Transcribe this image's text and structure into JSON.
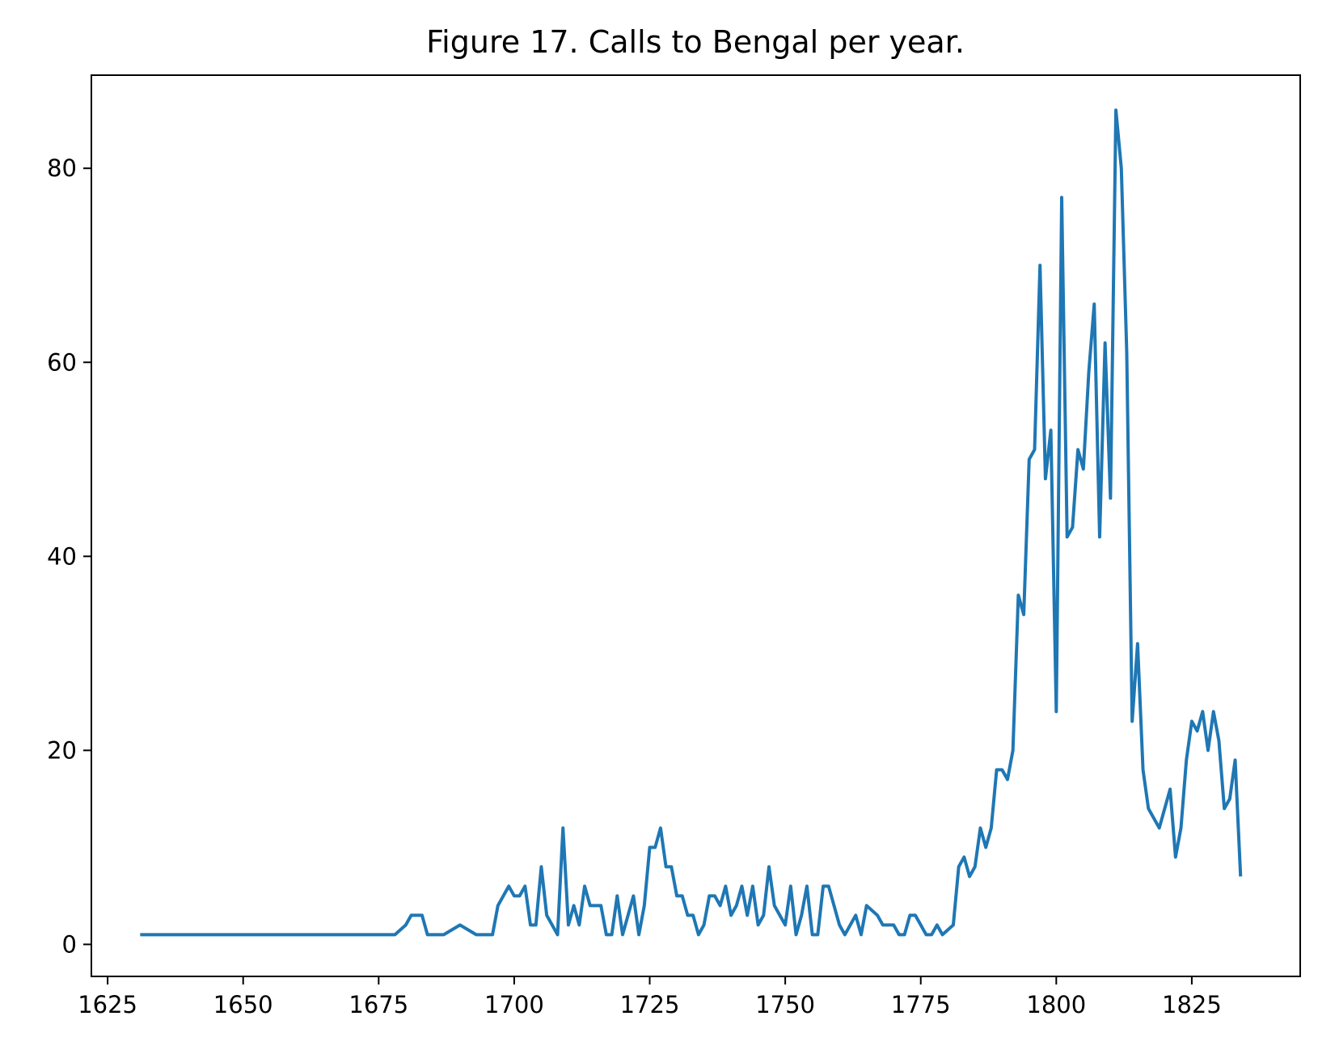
{
  "chart_data": {
    "type": "line",
    "title": "Figure 17. Calls to Bengal per year.",
    "xlabel": "",
    "ylabel": "",
    "xlim": [
      1622,
      1845
    ],
    "ylim": [
      -3.3,
      89.6
    ],
    "xticks": [
      1625,
      1650,
      1675,
      1700,
      1725,
      1750,
      1775,
      1800,
      1825
    ],
    "yticks": [
      0,
      20,
      40,
      60,
      80
    ],
    "grid": false,
    "legend": "none",
    "line_color": "#1f77b4",
    "series": [
      {
        "points": [
          [
            1631,
            1
          ],
          [
            1678,
            1
          ],
          [
            1680,
            2
          ],
          [
            1681,
            3
          ],
          [
            1683,
            3
          ],
          [
            1684,
            1
          ],
          [
            1687,
            1
          ],
          [
            1690,
            2
          ],
          [
            1693,
            1
          ],
          [
            1696,
            1
          ],
          [
            1697,
            4
          ],
          [
            1699,
            6
          ],
          [
            1700,
            5
          ],
          [
            1701,
            5
          ],
          [
            1702,
            6
          ],
          [
            1703,
            2
          ],
          [
            1704,
            2
          ],
          [
            1705,
            8
          ],
          [
            1706,
            3
          ],
          [
            1708,
            1
          ],
          [
            1709,
            12
          ],
          [
            1710,
            2
          ],
          [
            1711,
            4
          ],
          [
            1712,
            2
          ],
          [
            1713,
            6
          ],
          [
            1714,
            4
          ],
          [
            1716,
            4
          ],
          [
            1717,
            1
          ],
          [
            1718,
            1
          ],
          [
            1719,
            5
          ],
          [
            1720,
            1
          ],
          [
            1722,
            5
          ],
          [
            1723,
            1
          ],
          [
            1724,
            4
          ],
          [
            1725,
            10
          ],
          [
            1726,
            10
          ],
          [
            1727,
            12
          ],
          [
            1728,
            8
          ],
          [
            1729,
            8
          ],
          [
            1730,
            5
          ],
          [
            1731,
            5
          ],
          [
            1732,
            3
          ],
          [
            1733,
            3
          ],
          [
            1734,
            1
          ],
          [
            1735,
            2
          ],
          [
            1736,
            5
          ],
          [
            1737,
            5
          ],
          [
            1738,
            4
          ],
          [
            1739,
            6
          ],
          [
            1740,
            3
          ],
          [
            1741,
            4
          ],
          [
            1742,
            6
          ],
          [
            1743,
            3
          ],
          [
            1744,
            6
          ],
          [
            1745,
            2
          ],
          [
            1746,
            3
          ],
          [
            1747,
            8
          ],
          [
            1748,
            4
          ],
          [
            1749,
            3
          ],
          [
            1750,
            2
          ],
          [
            1751,
            6
          ],
          [
            1752,
            1
          ],
          [
            1753,
            3
          ],
          [
            1754,
            6
          ],
          [
            1755,
            1
          ],
          [
            1756,
            1
          ],
          [
            1757,
            6
          ],
          [
            1758,
            6
          ],
          [
            1759,
            4
          ],
          [
            1760,
            2
          ],
          [
            1761,
            1
          ],
          [
            1762,
            2
          ],
          [
            1763,
            3
          ],
          [
            1764,
            1
          ],
          [
            1765,
            4
          ],
          [
            1766,
            3.5
          ],
          [
            1767,
            3
          ],
          [
            1768,
            2
          ],
          [
            1770,
            2
          ],
          [
            1771,
            1
          ],
          [
            1772,
            1
          ],
          [
            1773,
            3
          ],
          [
            1774,
            3
          ],
          [
            1775,
            2
          ],
          [
            1776,
            1
          ],
          [
            1777,
            1
          ],
          [
            1778,
            2
          ],
          [
            1779,
            1
          ],
          [
            1781,
            2
          ],
          [
            1782,
            8
          ],
          [
            1783,
            9
          ],
          [
            1784,
            7
          ],
          [
            1785,
            8
          ],
          [
            1786,
            12
          ],
          [
            1787,
            10
          ],
          [
            1788,
            12
          ],
          [
            1789,
            18
          ],
          [
            1790,
            18
          ],
          [
            1791,
            17
          ],
          [
            1792,
            20
          ],
          [
            1793,
            36
          ],
          [
            1794,
            34
          ],
          [
            1795,
            50
          ],
          [
            1796,
            51
          ],
          [
            1797,
            70
          ],
          [
            1798,
            48
          ],
          [
            1799,
            53
          ],
          [
            1800,
            24
          ],
          [
            1801,
            77
          ],
          [
            1802,
            42
          ],
          [
            1803,
            43
          ],
          [
            1804,
            51
          ],
          [
            1805,
            49
          ],
          [
            1806,
            59
          ],
          [
            1807,
            66
          ],
          [
            1808,
            42
          ],
          [
            1809,
            62
          ],
          [
            1810,
            46
          ],
          [
            1811,
            86
          ],
          [
            1812,
            80
          ],
          [
            1813,
            61
          ],
          [
            1814,
            23
          ],
          [
            1815,
            31
          ],
          [
            1816,
            18
          ],
          [
            1817,
            14
          ],
          [
            1819,
            12
          ],
          [
            1821,
            16
          ],
          [
            1822,
            9
          ],
          [
            1823,
            12
          ],
          [
            1824,
            19
          ],
          [
            1825,
            23
          ],
          [
            1826,
            22
          ],
          [
            1827,
            24
          ],
          [
            1828,
            20
          ],
          [
            1829,
            24
          ],
          [
            1830,
            21
          ],
          [
            1831,
            14
          ],
          [
            1832,
            15
          ],
          [
            1833,
            19
          ],
          [
            1834,
            7
          ]
        ]
      }
    ]
  }
}
